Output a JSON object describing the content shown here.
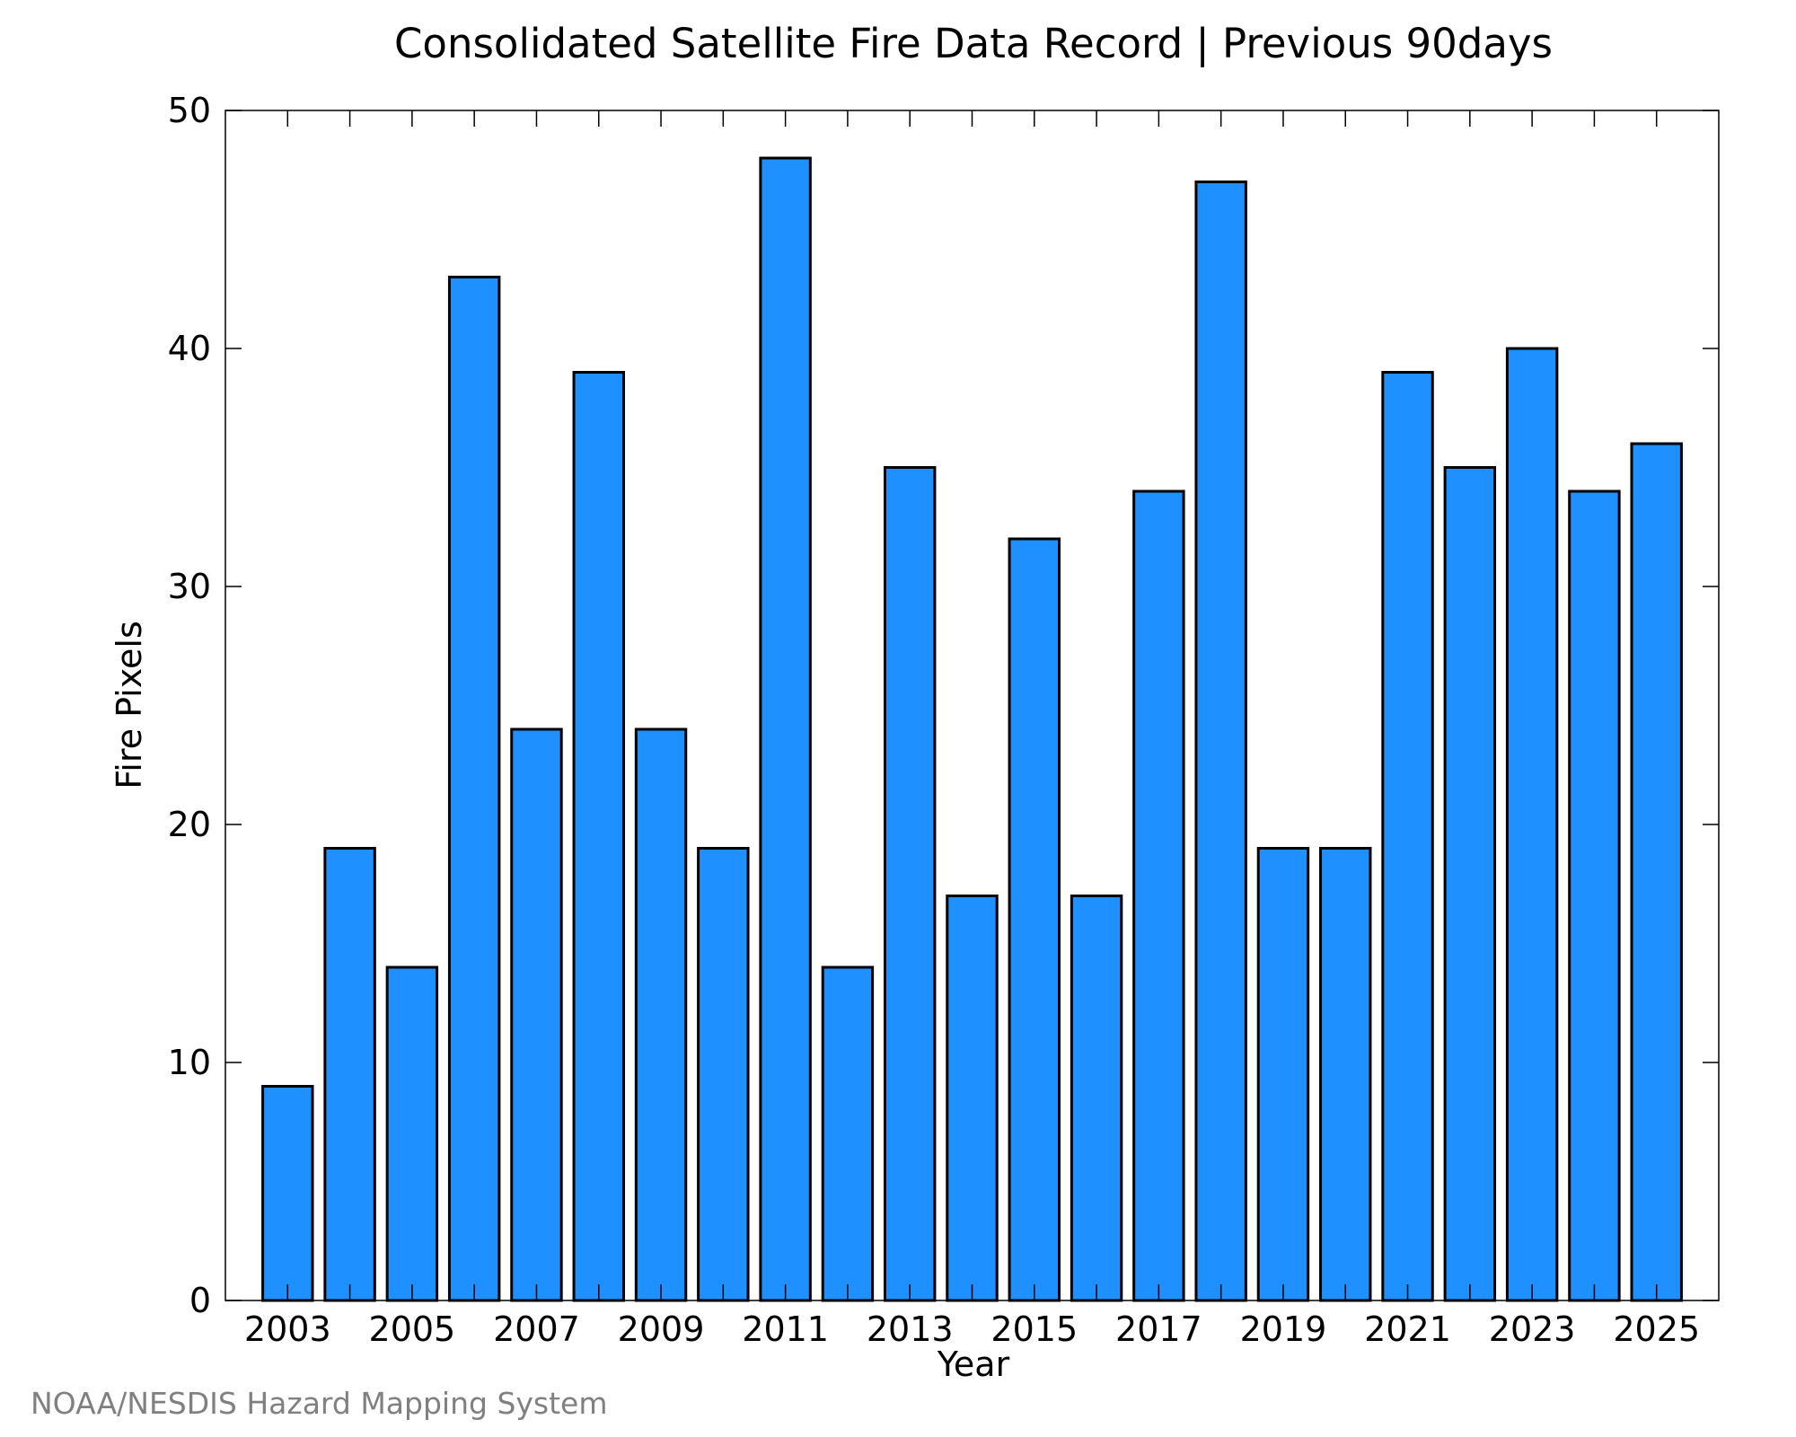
{
  "chart_data": {
    "type": "bar",
    "title": "Consolidated Satellite Fire Data Record | Previous 90days",
    "xlabel": "Year",
    "ylabel": "Fire Pixels",
    "categories": [
      "2003",
      "2004",
      "2005",
      "2006",
      "2007",
      "2008",
      "2009",
      "2010",
      "2011",
      "2012",
      "2013",
      "2014",
      "2015",
      "2016",
      "2017",
      "2018",
      "2019",
      "2020",
      "2021",
      "2022",
      "2023",
      "2024",
      "2025"
    ],
    "values": [
      9,
      19,
      14,
      43,
      24,
      39,
      24,
      19,
      48,
      14,
      35,
      17,
      32,
      17,
      34,
      47,
      19,
      19,
      39,
      35,
      40,
      34,
      36
    ],
    "x_tick_labels": [
      "2003",
      "2005",
      "2007",
      "2009",
      "2011",
      "2013",
      "2015",
      "2017",
      "2019",
      "2021",
      "2023",
      "2025"
    ],
    "y_ticks": [
      0,
      10,
      20,
      30,
      40,
      50
    ],
    "ylim": [
      0,
      50
    ],
    "grid": false,
    "bar_color": "#1e90ff",
    "bar_edge_color": "#000000"
  },
  "footer": {
    "credit": "NOAA/NESDIS Hazard Mapping System"
  }
}
